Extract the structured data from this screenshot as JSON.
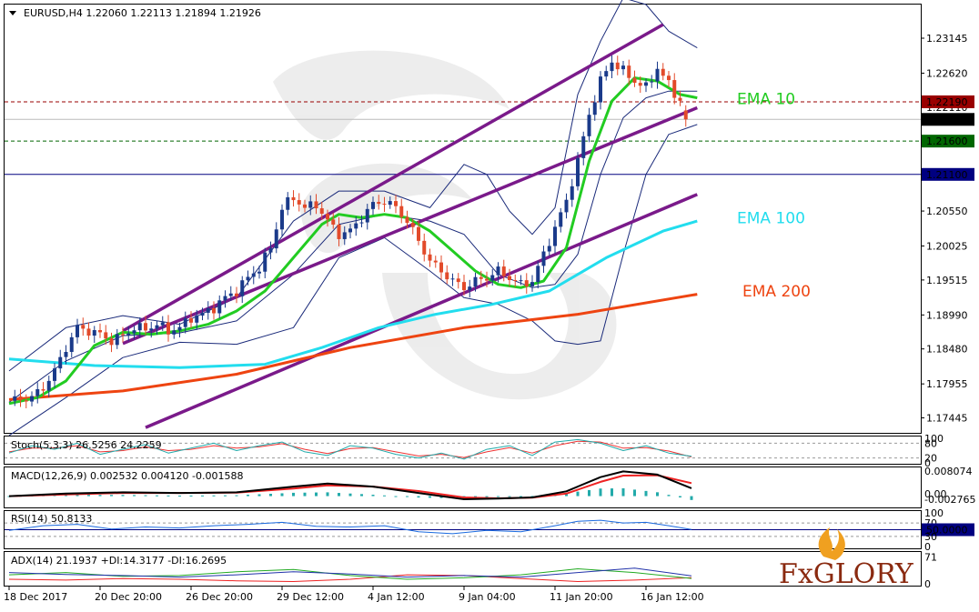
{
  "header": {
    "symbol_line": "EURUSD,H4  1.22060 1.22113 1.21894 1.21926"
  },
  "colors": {
    "bg": "#ffffff",
    "bull": "#1a3a8a",
    "bear": "#e24a2a",
    "ema10": "#22cc22",
    "ema100": "#22ddee",
    "ema200": "#ee4411",
    "channel": "#7a1a8a",
    "bollinger": "#1a2a7a",
    "resistance": "#990000",
    "support": "#006600",
    "level": "#000080"
  },
  "chart_data": {
    "type": "candlestick",
    "symbol": "EURUSD,H4",
    "ohlc_current": {
      "open": 1.2206,
      "high": 1.22113,
      "low": 1.21894,
      "close": 1.21926
    },
    "ylim": [
      1.1722,
      1.2365
    ],
    "y_ticks": [
      "1.23145",
      "1.22620",
      "1.22110",
      "1.21600",
      "1.21100",
      "1.20550",
      "1.20025",
      "1.19515",
      "1.18990",
      "1.18480",
      "1.17955",
      "1.17445"
    ],
    "x_ticks": [
      "18 Dec 2017",
      "20 Dec 20:00",
      "26 Dec 20:00",
      "29 Dec 12:00",
      "4 Jan 12:00",
      "9 Jan 04:00",
      "11 Jan 20:00",
      "16 Jan 12:00"
    ],
    "x_tick_index": [
      0,
      16,
      32,
      48,
      64,
      80,
      96,
      112
    ],
    "n_bars": 120,
    "levels": [
      {
        "label": "1.22190",
        "value": 1.2219,
        "style": "dashed",
        "color": "#990000",
        "bg": "#990000"
      },
      {
        "label": "1.21926",
        "value": 1.21926,
        "style": "solid",
        "color": "#bbbbbb",
        "bg": "#000000"
      },
      {
        "label": "1.21600",
        "value": 1.216,
        "style": "dashed",
        "color": "#006600",
        "bg": "#006600"
      },
      {
        "label": "1.21100",
        "value": 1.211,
        "style": "solid",
        "color": "#000080",
        "bg": "#000080"
      }
    ],
    "ema_labels": [
      {
        "text": "EMA 10",
        "color": "#22cc22",
        "value": 1.2224
      },
      {
        "text": "EMA 100",
        "color": "#22ddee",
        "value": 1.2045
      },
      {
        "text": "EMA 200",
        "color": "#ee4411",
        "value": 1.1935
      }
    ],
    "ema10": [
      [
        0,
        1.1766
      ],
      [
        5,
        1.1775
      ],
      [
        10,
        1.18
      ],
      [
        15,
        1.1853
      ],
      [
        20,
        1.1873
      ],
      [
        25,
        1.187
      ],
      [
        30,
        1.1875
      ],
      [
        35,
        1.1885
      ],
      [
        40,
        1.1905
      ],
      [
        45,
        1.1935
      ],
      [
        50,
        1.1985
      ],
      [
        55,
        1.2035
      ],
      [
        58,
        1.205
      ],
      [
        62,
        1.2045
      ],
      [
        66,
        1.205
      ],
      [
        70,
        1.2045
      ],
      [
        74,
        1.2025
      ],
      [
        78,
        1.1995
      ],
      [
        82,
        1.1965
      ],
      [
        86,
        1.1945
      ],
      [
        90,
        1.194
      ],
      [
        94,
        1.195
      ],
      [
        98,
        1.2
      ],
      [
        102,
        1.213
      ],
      [
        106,
        1.222
      ],
      [
        110,
        1.2255
      ],
      [
        114,
        1.225
      ],
      [
        118,
        1.223
      ],
      [
        121,
        1.2225
      ]
    ],
    "ema100": [
      [
        0,
        1.1833
      ],
      [
        15,
        1.1823
      ],
      [
        30,
        1.182
      ],
      [
        45,
        1.1825
      ],
      [
        55,
        1.185
      ],
      [
        65,
        1.188
      ],
      [
        75,
        1.19
      ],
      [
        85,
        1.1915
      ],
      [
        95,
        1.1935
      ],
      [
        105,
        1.1985
      ],
      [
        115,
        1.2025
      ],
      [
        121,
        1.204
      ]
    ],
    "ema200": [
      [
        0,
        1.1772
      ],
      [
        20,
        1.1785
      ],
      [
        40,
        1.181
      ],
      [
        60,
        1.185
      ],
      [
        80,
        1.188
      ],
      [
        100,
        1.19
      ],
      [
        121,
        1.193
      ]
    ],
    "bollinger_upper": [
      [
        0,
        1.1815
      ],
      [
        10,
        1.188
      ],
      [
        20,
        1.1898
      ],
      [
        30,
        1.1885
      ],
      [
        40,
        1.1925
      ],
      [
        50,
        1.204
      ],
      [
        58,
        1.2085
      ],
      [
        66,
        1.2085
      ],
      [
        74,
        1.206
      ],
      [
        80,
        1.2125
      ],
      [
        84,
        1.211
      ],
      [
        88,
        1.2055
      ],
      [
        92,
        1.202
      ],
      [
        96,
        1.206
      ],
      [
        100,
        1.223
      ],
      [
        104,
        1.231
      ],
      [
        108,
        1.2375
      ],
      [
        112,
        1.2365
      ],
      [
        116,
        1.2325
      ],
      [
        121,
        1.23
      ]
    ],
    "bollinger_mid": [
      [
        0,
        1.1768
      ],
      [
        10,
        1.183
      ],
      [
        20,
        1.1868
      ],
      [
        30,
        1.1872
      ],
      [
        40,
        1.189
      ],
      [
        50,
        1.196
      ],
      [
        58,
        1.2035
      ],
      [
        66,
        1.205
      ],
      [
        74,
        1.204
      ],
      [
        80,
        1.202
      ],
      [
        86,
        1.196
      ],
      [
        92,
        1.194
      ],
      [
        96,
        1.1945
      ],
      [
        100,
        1.199
      ],
      [
        104,
        1.211
      ],
      [
        108,
        1.2195
      ],
      [
        112,
        1.2225
      ],
      [
        116,
        1.2235
      ],
      [
        121,
        1.2235
      ]
    ],
    "bollinger_lower": [
      [
        0,
        1.1718
      ],
      [
        10,
        1.1775
      ],
      [
        20,
        1.1835
      ],
      [
        30,
        1.1858
      ],
      [
        40,
        1.1855
      ],
      [
        50,
        1.188
      ],
      [
        58,
        1.1985
      ],
      [
        66,
        1.2015
      ],
      [
        74,
        1.1965
      ],
      [
        80,
        1.1925
      ],
      [
        86,
        1.1915
      ],
      [
        92,
        1.189
      ],
      [
        96,
        1.186
      ],
      [
        100,
        1.1855
      ],
      [
        104,
        1.186
      ],
      [
        108,
        1.199
      ],
      [
        112,
        1.211
      ],
      [
        116,
        1.217
      ],
      [
        121,
        1.2185
      ]
    ],
    "channel_lines": [
      [
        [
          20,
          1.1875
        ],
        [
          115,
          1.2335
        ]
      ],
      [
        [
          20,
          1.1856
        ],
        [
          121,
          1.221
        ]
      ],
      [
        [
          24,
          1.173
        ],
        [
          121,
          1.208
        ]
      ]
    ],
    "close_path": [
      [
        0,
        1.177
      ],
      [
        4,
        1.1775
      ],
      [
        6,
        1.179
      ],
      [
        8,
        1.1815
      ],
      [
        10,
        1.185
      ],
      [
        12,
        1.188
      ],
      [
        14,
        1.1875
      ],
      [
        16,
        1.187
      ],
      [
        18,
        1.186
      ],
      [
        20,
        1.1868
      ],
      [
        22,
        1.188
      ],
      [
        24,
        1.1878
      ],
      [
        26,
        1.1885
      ],
      [
        28,
        1.1875
      ],
      [
        30,
        1.188
      ],
      [
        32,
        1.1895
      ],
      [
        34,
        1.19
      ],
      [
        36,
        1.191
      ],
      [
        38,
        1.1925
      ],
      [
        40,
        1.1935
      ],
      [
        42,
        1.1955
      ],
      [
        44,
        1.197
      ],
      [
        46,
        1.2
      ],
      [
        48,
        1.206
      ],
      [
        50,
        1.2075
      ],
      [
        52,
        1.206
      ],
      [
        54,
        1.2065
      ],
      [
        56,
        1.204
      ],
      [
        58,
        1.202
      ],
      [
        60,
        1.2025
      ],
      [
        62,
        1.2045
      ],
      [
        64,
        1.2065
      ],
      [
        66,
        1.207
      ],
      [
        68,
        1.206
      ],
      [
        70,
        1.204
      ],
      [
        72,
        1.201
      ],
      [
        74,
        1.198
      ],
      [
        76,
        1.1965
      ],
      [
        78,
        1.195
      ],
      [
        80,
        1.194
      ],
      [
        82,
        1.195
      ],
      [
        84,
        1.1955
      ],
      [
        86,
        1.1965
      ],
      [
        88,
        1.1955
      ],
      [
        90,
        1.1945
      ],
      [
        92,
        1.195
      ],
      [
        94,
        1.199
      ],
      [
        96,
        1.203
      ],
      [
        98,
        1.207
      ],
      [
        100,
        1.213
      ],
      [
        102,
        1.22
      ],
      [
        104,
        1.225
      ],
      [
        106,
        1.228
      ],
      [
        108,
        1.2265
      ],
      [
        110,
        1.225
      ],
      [
        112,
        1.224
      ],
      [
        114,
        1.227
      ],
      [
        116,
        1.2245
      ],
      [
        118,
        1.222
      ],
      [
        119,
        1.2206
      ],
      [
        120,
        1.21926
      ]
    ],
    "stoch": {
      "label": "Stoch(5,3,3) 26.5256 24.2259",
      "levels": [
        80,
        20
      ],
      "ticks": [
        "100",
        "80",
        "20",
        "0"
      ],
      "main": [
        [
          0,
          40
        ],
        [
          4,
          70
        ],
        [
          8,
          55
        ],
        [
          12,
          80
        ],
        [
          16,
          35
        ],
        [
          20,
          55
        ],
        [
          24,
          75
        ],
        [
          28,
          40
        ],
        [
          32,
          60
        ],
        [
          36,
          80
        ],
        [
          40,
          50
        ],
        [
          44,
          70
        ],
        [
          48,
          85
        ],
        [
          52,
          45
        ],
        [
          56,
          30
        ],
        [
          60,
          70
        ],
        [
          64,
          60
        ],
        [
          68,
          35
        ],
        [
          72,
          20
        ],
        [
          76,
          40
        ],
        [
          80,
          15
        ],
        [
          84,
          55
        ],
        [
          88,
          70
        ],
        [
          92,
          30
        ],
        [
          96,
          85
        ],
        [
          100,
          95
        ],
        [
          104,
          80
        ],
        [
          108,
          50
        ],
        [
          112,
          70
        ],
        [
          116,
          40
        ],
        [
          120,
          26.5256
        ]
      ],
      "signal": [
        [
          0,
          45
        ],
        [
          4,
          60
        ],
        [
          8,
          60
        ],
        [
          12,
          70
        ],
        [
          16,
          45
        ],
        [
          20,
          50
        ],
        [
          24,
          65
        ],
        [
          28,
          50
        ],
        [
          32,
          55
        ],
        [
          36,
          70
        ],
        [
          40,
          60
        ],
        [
          44,
          65
        ],
        [
          48,
          78
        ],
        [
          52,
          55
        ],
        [
          56,
          38
        ],
        [
          60,
          58
        ],
        [
          64,
          62
        ],
        [
          68,
          45
        ],
        [
          72,
          28
        ],
        [
          76,
          35
        ],
        [
          80,
          22
        ],
        [
          84,
          45
        ],
        [
          88,
          62
        ],
        [
          92,
          40
        ],
        [
          96,
          70
        ],
        [
          100,
          88
        ],
        [
          104,
          85
        ],
        [
          108,
          60
        ],
        [
          112,
          62
        ],
        [
          116,
          48
        ],
        [
          120,
          24.2259
        ]
      ],
      "ylim": [
        0,
        100
      ]
    },
    "macd": {
      "label": "MACD(12,26,9) 0.002532 0.004120 -0.001588",
      "ticks": [
        "0.008074",
        "0.00",
        "-0.002765"
      ],
      "ylim": [
        -0.003,
        0.0085
      ],
      "main": [
        [
          0,
          0.0
        ],
        [
          10,
          0.0008
        ],
        [
          20,
          0.0012
        ],
        [
          30,
          0.001
        ],
        [
          40,
          0.0012
        ],
        [
          50,
          0.003
        ],
        [
          56,
          0.004
        ],
        [
          64,
          0.003
        ],
        [
          72,
          0.001
        ],
        [
          80,
          -0.001
        ],
        [
          86,
          -0.0008
        ],
        [
          92,
          -0.0004
        ],
        [
          98,
          0.0015
        ],
        [
          104,
          0.006
        ],
        [
          108,
          0.0078
        ],
        [
          114,
          0.0068
        ],
        [
          120,
          0.0025
        ]
      ],
      "signal": [
        [
          0,
          0.0
        ],
        [
          10,
          0.0005
        ],
        [
          20,
          0.001
        ],
        [
          30,
          0.001
        ],
        [
          40,
          0.0011
        ],
        [
          50,
          0.0024
        ],
        [
          56,
          0.0034
        ],
        [
          64,
          0.003
        ],
        [
          72,
          0.0016
        ],
        [
          80,
          -0.0004
        ],
        [
          86,
          -0.0007
        ],
        [
          92,
          -0.0005
        ],
        [
          98,
          0.0008
        ],
        [
          104,
          0.0045
        ],
        [
          108,
          0.0065
        ],
        [
          114,
          0.0066
        ],
        [
          120,
          0.0041
        ]
      ],
      "hist": [
        [
          0,
          0.0
        ],
        [
          10,
          0.0003
        ],
        [
          20,
          0.0002
        ],
        [
          30,
          0.0
        ],
        [
          40,
          0.0001
        ],
        [
          50,
          0.0006
        ],
        [
          56,
          0.0006
        ],
        [
          64,
          0.0
        ],
        [
          72,
          -0.0006
        ],
        [
          80,
          -0.0006
        ],
        [
          86,
          -0.0001
        ],
        [
          92,
          0.0001
        ],
        [
          98,
          0.0007
        ],
        [
          104,
          0.0015
        ],
        [
          108,
          0.0013
        ],
        [
          114,
          0.0002
        ],
        [
          120,
          -0.0016
        ]
      ]
    },
    "rsi": {
      "label": "RSI(14) 50.8133",
      "ticks": [
        "100",
        "70",
        "50.0000",
        "30",
        "0"
      ],
      "ylim": [
        0,
        100
      ],
      "levels": [
        70,
        30
      ],
      "value_line": 50,
      "values": [
        [
          0,
          48
        ],
        [
          6,
          62
        ],
        [
          12,
          66
        ],
        [
          18,
          52
        ],
        [
          24,
          58
        ],
        [
          30,
          55
        ],
        [
          36,
          62
        ],
        [
          42,
          66
        ],
        [
          48,
          72
        ],
        [
          54,
          60
        ],
        [
          60,
          58
        ],
        [
          66,
          62
        ],
        [
          72,
          44
        ],
        [
          78,
          38
        ],
        [
          84,
          48
        ],
        [
          90,
          44
        ],
        [
          96,
          62
        ],
        [
          100,
          75
        ],
        [
          104,
          78
        ],
        [
          108,
          70
        ],
        [
          112,
          72
        ],
        [
          116,
          62
        ],
        [
          120,
          50.8133
        ]
      ]
    },
    "adx": {
      "label": "ADX(14) 21.1937 +DI:14.3177 -DI:16.2695",
      "ticks": [
        "71",
        "0"
      ],
      "ylim": [
        0,
        80
      ],
      "adx": [
        [
          0,
          30
        ],
        [
          10,
          25
        ],
        [
          20,
          22
        ],
        [
          30,
          18
        ],
        [
          40,
          24
        ],
        [
          50,
          32
        ],
        [
          60,
          26
        ],
        [
          70,
          18
        ],
        [
          80,
          22
        ],
        [
          90,
          18
        ],
        [
          100,
          30
        ],
        [
          110,
          42
        ],
        [
          120,
          21.1937
        ]
      ],
      "plus_di": [
        [
          0,
          24
        ],
        [
          10,
          30
        ],
        [
          20,
          20
        ],
        [
          30,
          22
        ],
        [
          40,
          32
        ],
        [
          50,
          38
        ],
        [
          60,
          22
        ],
        [
          70,
          12
        ],
        [
          80,
          16
        ],
        [
          90,
          24
        ],
        [
          100,
          40
        ],
        [
          110,
          30
        ],
        [
          120,
          14.3177
        ]
      ],
      "minus_di": [
        [
          0,
          12
        ],
        [
          10,
          10
        ],
        [
          20,
          14
        ],
        [
          30,
          12
        ],
        [
          40,
          8
        ],
        [
          50,
          6
        ],
        [
          60,
          12
        ],
        [
          70,
          24
        ],
        [
          80,
          22
        ],
        [
          90,
          14
        ],
        [
          100,
          6
        ],
        [
          110,
          10
        ],
        [
          120,
          16.2695
        ]
      ]
    }
  },
  "logo": {
    "text": "FxGLORY"
  }
}
